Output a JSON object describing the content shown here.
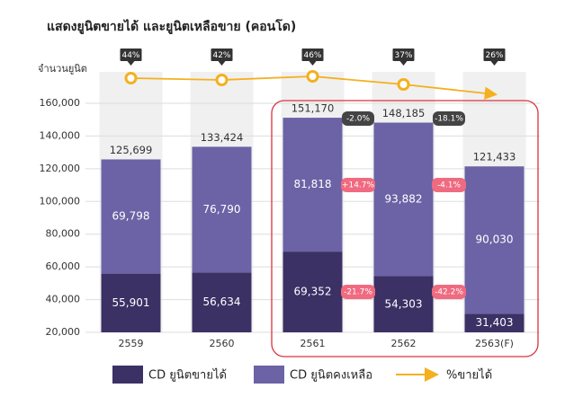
{
  "chart_data": {
    "type": "bar",
    "title": "แสดงยูนิตขายได้ และยูนิตเหลือขาย (คอนโด)",
    "y_label": "จำนวนยูนิต",
    "categories": [
      "2559",
      "2560",
      "2561",
      "2562",
      "2563(F)"
    ],
    "series": [
      {
        "name": "CD ยูนิตขายได้",
        "color": "#3b3165",
        "values": [
          55901,
          56634,
          69352,
          54303,
          31403
        ],
        "value_labels": [
          "55,901",
          "56,634",
          "69,352",
          "54,303",
          "31,403"
        ]
      },
      {
        "name": "CD ยูนิตคงเหลือ",
        "color": "#6b63a5",
        "values": [
          69798,
          76790,
          81818,
          93882,
          90030
        ],
        "value_labels": [
          "69,798",
          "76,790",
          "81,818",
          "93,882",
          "90,030"
        ]
      }
    ],
    "totals": [
      {
        "value": 125699,
        "label": "125,699"
      },
      {
        "value": 133424,
        "label": "133,424"
      },
      {
        "value": 151170,
        "label": "151,170"
      },
      {
        "value": 148185,
        "label": "148,185"
      },
      {
        "value": 121433,
        "label": "121,433"
      }
    ],
    "line": {
      "type": "line",
      "name": "%ขายได้",
      "color": "#f4b01e",
      "values": [
        44,
        42,
        46,
        37,
        26
      ],
      "value_labels": [
        "44%",
        "42%",
        "46%",
        "37%",
        "26%"
      ]
    },
    "total_changes": [
      {
        "value": -2.0,
        "label": "-2.0%"
      },
      {
        "value": -18.1,
        "label": "-18.1%"
      }
    ],
    "remaining_changes": [
      {
        "value": 14.7,
        "label": "+14.7%"
      },
      {
        "value": -4.1,
        "label": "-4.1%"
      }
    ],
    "sold_changes": [
      {
        "value": -21.7,
        "label": "-21.7%"
      },
      {
        "value": -42.2,
        "label": "-42.2%"
      }
    ],
    "ylim": [
      20000,
      160000
    ],
    "yticks": [
      {
        "value": 20000,
        "label": "20,000"
      },
      {
        "value": 40000,
        "label": "40,000"
      },
      {
        "value": 60000,
        "label": "60,000"
      },
      {
        "value": 80000,
        "label": "80,000"
      },
      {
        "value": 100000,
        "label": "100,000"
      },
      {
        "value": 120000,
        "label": "120,000"
      },
      {
        "value": 140000,
        "label": "140,000"
      },
      {
        "value": 160000,
        "label": "160,000"
      }
    ],
    "grid": true
  }
}
